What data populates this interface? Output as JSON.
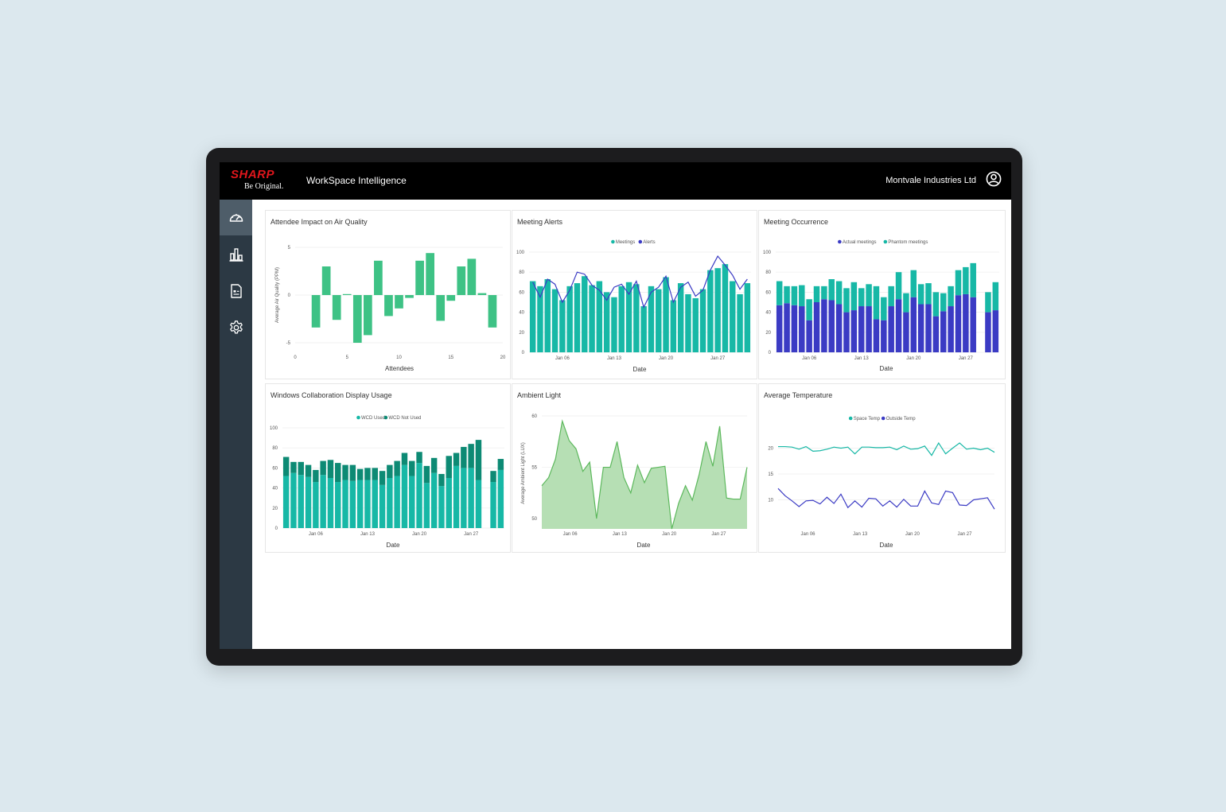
{
  "header": {
    "logo_word": "SHARP",
    "logo_tagline": "Be Original.",
    "app_title": "WorkSpace Intelligence",
    "org_name": "Montvale Industries Ltd",
    "user_icon": "user-circle-icon"
  },
  "sidebar": {
    "items": [
      {
        "icon": "dashboard-gauge-icon",
        "active": true
      },
      {
        "icon": "bar-chart-icon",
        "active": false
      },
      {
        "icon": "report-document-icon",
        "active": false
      },
      {
        "icon": "settings-gear-icon",
        "active": false
      }
    ]
  },
  "colors": {
    "teal": "#17b8a6",
    "green": "#3ec285",
    "dark_teal": "#0d8a74",
    "indigo": "#3b3bc4",
    "area_fill": "#b6dfb4",
    "area_line": "#5cb85c",
    "sharp_red": "#e0161c",
    "sidebar": "#2c3944"
  },
  "charts": [
    {
      "title": "Attendee Impact on Air Quality",
      "chart_data": {
        "type": "bar",
        "xlabel": "Attendees",
        "ylabel": "Average Air Quality (PPM)",
        "xlim": [
          0,
          20
        ],
        "ylim": [
          -5,
          5
        ],
        "x_ticks": [
          "0",
          "5",
          "10",
          "15",
          "20"
        ],
        "y_ticks": [
          "5",
          "0",
          "-5"
        ],
        "x": [
          2,
          3,
          4,
          5,
          6,
          7,
          8,
          9,
          10,
          11,
          12,
          13,
          14,
          15,
          16,
          17,
          18,
          19
        ],
        "values": [
          -3.4,
          3.0,
          -2.6,
          0.1,
          -5.0,
          -4.2,
          3.6,
          -2.2,
          -1.4,
          -0.3,
          3.6,
          4.4,
          -2.7,
          -0.6,
          3.0,
          3.8,
          0.2,
          -3.4
        ]
      }
    },
    {
      "title": "Meeting Alerts",
      "chart_data": {
        "type": "bar",
        "xlabel": "Date",
        "ylim": [
          0,
          100
        ],
        "y_ticks": [
          "0",
          "20",
          "40",
          "60",
          "80",
          "100"
        ],
        "x_ticks": [
          "Jan 06",
          "Jan 13",
          "Jan 20",
          "Jan 27"
        ],
        "x_tick_index": [
          4,
          11,
          18,
          25
        ],
        "series": [
          {
            "name": "Meetings",
            "type": "bar",
            "values": [
              71,
              66,
              73,
              63,
              52,
              66,
              69,
              76,
              67,
              71,
              60,
              55,
              66,
              70,
              68,
              46,
              66,
              63,
              75,
              52,
              69,
              58,
              54,
              63,
              82,
              84,
              88,
              71,
              58,
              69
            ]
          },
          {
            "name": "Alerts",
            "type": "line",
            "values": [
              70,
              55,
              73,
              68,
              50,
              62,
              80,
              78,
              67,
              62,
              52,
              65,
              68,
              58,
              71,
              45,
              60,
              65,
              76,
              50,
              65,
              70,
              56,
              62,
              82,
              96,
              87,
              77,
              63,
              73
            ]
          }
        ]
      }
    },
    {
      "title": "Meeting Occurrence",
      "chart_data": {
        "type": "bar",
        "stacked": true,
        "xlabel": "Date",
        "ylim": [
          0,
          100
        ],
        "y_ticks": [
          "0",
          "20",
          "40",
          "60",
          "80",
          "100"
        ],
        "x_ticks": [
          "Jan 06",
          "Jan 13",
          "Jan 20",
          "Jan 27"
        ],
        "x_tick_index": [
          4,
          11,
          18,
          25
        ],
        "series": [
          {
            "name": "Actual meetings",
            "values": [
              47,
              49,
              47,
              46,
              32,
              50,
              53,
              52,
              48,
              40,
              42,
              46,
              46,
              33,
              32,
              46,
              53,
              40,
              55,
              48,
              48,
              36,
              41,
              46,
              57,
              58,
              55,
              0,
              40,
              42
            ]
          },
          {
            "name": "Phantom meetings",
            "values": [
              24,
              17,
              19,
              21,
              21,
              16,
              13,
              21,
              23,
              24,
              28,
              18,
              22,
              33,
              23,
              20,
              27,
              19,
              27,
              20,
              21,
              24,
              18,
              20,
              25,
              27,
              34,
              0,
              20,
              28
            ]
          }
        ]
      }
    },
    {
      "title": "Windows Collaboration Display Usage",
      "chart_data": {
        "type": "bar",
        "stacked": true,
        "xlabel": "Date",
        "ylim": [
          0,
          100
        ],
        "y_ticks": [
          "0",
          "20",
          "40",
          "60",
          "80",
          "100"
        ],
        "x_ticks": [
          "Jan 06",
          "Jan 13",
          "Jan 20",
          "Jan 27"
        ],
        "x_tick_index": [
          4,
          11,
          18,
          25
        ],
        "series": [
          {
            "name": "WCD Used",
            "values": [
              52,
              55,
              53,
              51,
              46,
              53,
              50,
              46,
              48,
              47,
              48,
              48,
              48,
              43,
              50,
              52,
              63,
              52,
              65,
              45,
              55,
              42,
              50,
              62,
              60,
              60,
              48,
              0,
              46,
              58
            ]
          },
          {
            "name": "WCD Not Used",
            "values": [
              19,
              11,
              13,
              12,
              12,
              14,
              18,
              19,
              15,
              16,
              11,
              12,
              12,
              14,
              13,
              15,
              12,
              15,
              11,
              17,
              15,
              12,
              22,
              13,
              21,
              24,
              40,
              0,
              11,
              11
            ]
          }
        ]
      }
    },
    {
      "title": "Ambient Light",
      "chart_data": {
        "type": "area",
        "xlabel": "Date",
        "ylabel": "Average Ambient Light (LUX)",
        "ylim": [
          49,
          60
        ],
        "y_ticks": [
          "50",
          "55",
          "60"
        ],
        "x_ticks": [
          "Jan 06",
          "Jan 13",
          "Jan 20",
          "Jan 27"
        ],
        "x_tick_index": [
          4,
          11,
          18,
          25
        ],
        "values": [
          53.2,
          54.0,
          55.8,
          59.5,
          57.6,
          56.8,
          54.6,
          55.5,
          50.0,
          55.0,
          55.0,
          57.5,
          54.0,
          52.5,
          55.2,
          53.5,
          54.9,
          55.0,
          55.1,
          49.0,
          51.5,
          53.2,
          51.8,
          54.3,
          57.5,
          55.1,
          59.0,
          52.0,
          51.9,
          51.9,
          55.0
        ]
      }
    },
    {
      "title": "Average Temperature",
      "chart_data": {
        "type": "line",
        "xlabel": "Date",
        "ylim": [
          5,
          25
        ],
        "y_ticks": [
          "10",
          "15",
          "20"
        ],
        "x_ticks": [
          "Jan 06",
          "Jan 13",
          "Jan 20",
          "Jan 27"
        ],
        "x_tick_index": [
          4,
          11,
          18,
          25
        ],
        "series": [
          {
            "name": "Space Temp",
            "values": [
              20.3,
              20.3,
              20.2,
              19.8,
              20.3,
              19.4,
              19.5,
              19.8,
              20.2,
              20.0,
              20.2,
              18.9,
              20.2,
              20.2,
              20.1,
              20.1,
              20.2,
              19.7,
              20.4,
              19.8,
              19.9,
              20.4,
              18.6,
              21.0,
              18.9,
              20.0,
              21.0,
              19.8,
              20.0,
              19.7,
              20.0,
              19.2
            ]
          },
          {
            "name": "Outside Temp",
            "values": [
              12.2,
              10.8,
              9.8,
              8.7,
              9.8,
              9.9,
              9.2,
              10.5,
              9.3,
              11.1,
              8.5,
              9.8,
              8.6,
              10.3,
              10.2,
              8.8,
              9.8,
              8.6,
              10.1,
              8.8,
              8.8,
              11.7,
              9.4,
              9.1,
              11.7,
              11.4,
              9.0,
              8.9,
              10.0,
              10.2,
              10.4,
              8.2
            ]
          }
        ]
      }
    }
  ]
}
